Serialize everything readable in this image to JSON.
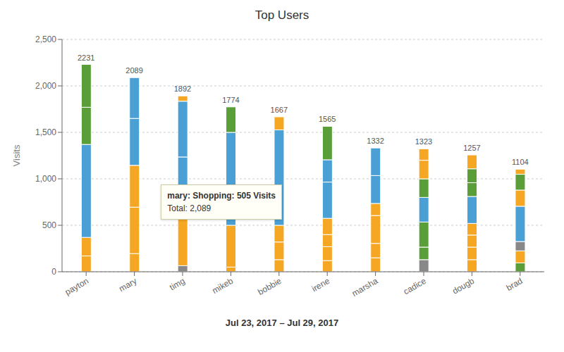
{
  "chart_data": {
    "type": "bar",
    "stacked": true,
    "title": "Top Users",
    "xlabel": "Jul 23, 2017 – Jul 29, 2017",
    "ylabel": "Visits",
    "categories": [
      "payton",
      "mary",
      "timg",
      "mikeb",
      "bobbie",
      "irene",
      "marsha",
      "cadice",
      "dougb",
      "brad"
    ],
    "series": [
      {
        "values": [
          170,
          195,
          65,
          50,
          130,
          120,
          150,
          130,
          130,
          95
        ],
        "colors": [
          "#f5a623",
          "#f5a623",
          "#888888",
          "#f5a623",
          "#f5a623",
          "#f5a623",
          "#f5a623",
          "#888888",
          "#f5a623",
          "#5a9e3a"
        ]
      },
      {
        "values": [
          200,
          500,
          600,
          450,
          190,
          150,
          155,
          135,
          135,
          130
        ],
        "colors": [
          "#f5a623",
          "#f5a623",
          "#f5a623",
          "#f5a623",
          "#f5a623",
          "#f5a623",
          "#f5a623",
          "#5a9e3a",
          "#f5a623",
          "#f5a623"
        ]
      },
      {
        "values": [
          1000,
          450,
          570,
          1000,
          180,
          130,
          300,
          270,
          130,
          100
        ],
        "colors": [
          "#4a9fd4",
          "#f5a623",
          "#4a9fd4",
          "#4a9fd4",
          "#f5a623",
          "#f5a623",
          "#f5a623",
          "#5a9e3a",
          "#f5a623",
          "#888888"
        ]
      },
      {
        "values": [
          400,
          505,
          600,
          274,
          1027,
          175,
          130,
          265,
          125,
          380
        ],
        "colors": [
          "#5a9e3a",
          "#4a9fd4",
          "#4a9fd4",
          "#5a9e3a",
          "#4a9fd4",
          "#f5a623",
          "#f5a623",
          "#4a9fd4",
          "#f5a623",
          "#4a9fd4"
        ]
      },
      {
        "values": [
          461,
          439,
          57,
          null,
          140,
          390,
          300,
          200,
          290,
          174
        ],
        "colors": [
          "#5a9e3a",
          "#4a9fd4",
          "#f5a623",
          null,
          "#f5a623",
          "#4a9fd4",
          "#4a9fd4",
          "#5a9e3a",
          "#4a9fd4",
          "#f5a623"
        ]
      },
      {
        "values": [
          null,
          null,
          null,
          null,
          null,
          240,
          297,
          200,
          148,
          170
        ],
        "colors": [
          null,
          null,
          null,
          null,
          null,
          "#4a9fd4",
          "#4a9fd4",
          "#f5a623",
          "#5a9e3a",
          "#5a9e3a"
        ]
      },
      {
        "values": [
          null,
          null,
          null,
          null,
          null,
          360,
          null,
          123,
          150,
          55
        ],
        "colors": [
          null,
          null,
          null,
          null,
          null,
          "#5a9e3a",
          null,
          "#f5a623",
          "#5a9e3a",
          "#f5a623"
        ]
      },
      {
        "values": [
          null,
          null,
          null,
          null,
          null,
          null,
          null,
          null,
          149,
          null
        ],
        "colors": [
          null,
          null,
          null,
          null,
          null,
          null,
          null,
          null,
          "#f5a623",
          null
        ]
      }
    ],
    "totals": [
      2231,
      2089,
      1892,
      1774,
      1667,
      1565,
      1332,
      1323,
      1257,
      1104
    ],
    "ylim": [
      0,
      2500
    ],
    "yticks": [
      0,
      500,
      {
        "value": 1000,
        "label": "1,000"
      },
      {
        "value": 1500,
        "label": "1,500"
      },
      {
        "value": 2000,
        "label": "2,000"
      },
      {
        "value": 2500,
        "label": "2,500"
      }
    ],
    "grid": true,
    "annotations": [
      "mary: Shopping: 505 Visits",
      "Total: 2,089"
    ]
  }
}
